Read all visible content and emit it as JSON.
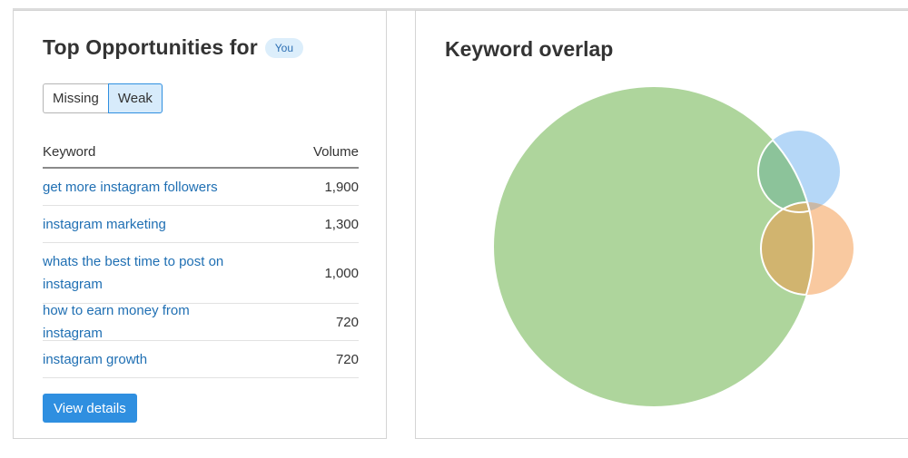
{
  "left_card": {
    "title": "Top Opportunities for",
    "badge": "You",
    "toggle": {
      "missing_label": "Missing",
      "weak_label": "Weak",
      "selected": "Weak"
    },
    "table": {
      "headers": {
        "keyword": "Keyword",
        "volume": "Volume"
      },
      "rows": [
        {
          "keyword": "get more instagram followers",
          "volume": "1,900"
        },
        {
          "keyword": "instagram marketing",
          "volume": "1,300"
        },
        {
          "keyword": "whats the best time to post on instagram",
          "volume": "1,000"
        },
        {
          "keyword": "how to earn money from instagram",
          "volume": "720"
        },
        {
          "keyword": "instagram growth",
          "volume": "720"
        }
      ]
    },
    "view_details_label": "View details"
  },
  "right_card": {
    "title": "Keyword overlap",
    "venn_colors": {
      "large": "#aed59c",
      "blue": "#b5d7f7",
      "orange": "#f9c9a0",
      "green_blue_overlap": "#8cc39a",
      "green_orange_overlap": "#d1b46f",
      "blue_orange_overlap": "#c9b8a6"
    }
  }
}
